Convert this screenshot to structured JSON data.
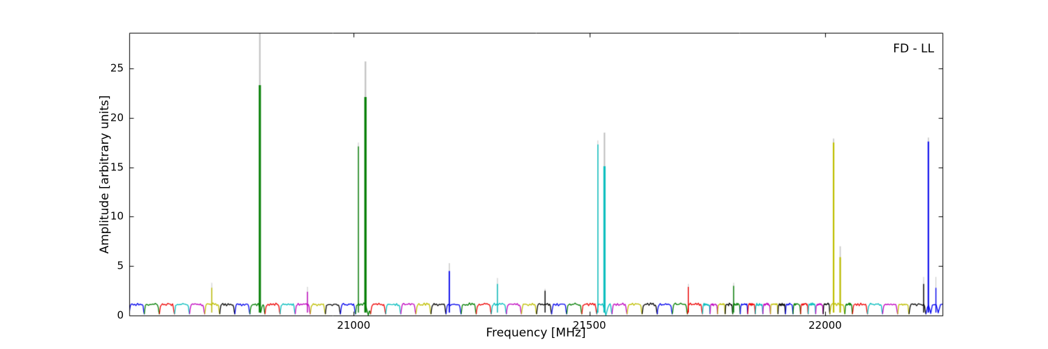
{
  "chart_data": {
    "type": "line",
    "title": "FD - LL",
    "xlabel": "Frequency [MHz]",
    "ylabel": "Amplitude [arbitrary units]",
    "xlim": [
      20524,
      22249
    ],
    "ylim": [
      0,
      28.6
    ],
    "grid": false,
    "legend": "none",
    "x_ticks": [
      {
        "v": 21000,
        "label": "21000"
      },
      {
        "v": 21500,
        "label": "21500"
      },
      {
        "v": 22000,
        "label": "22000"
      }
    ],
    "y_ticks": [
      {
        "v": 0,
        "label": "0"
      },
      {
        "v": 5,
        "label": "5"
      },
      {
        "v": 10,
        "label": "10"
      },
      {
        "v": 15,
        "label": "15"
      },
      {
        "v": 20,
        "label": "20"
      },
      {
        "v": 25,
        "label": "25"
      }
    ],
    "colors": {
      "b": "#0000ee",
      "g": "#007d00",
      "r": "#ee0000",
      "c": "#00bcbc",
      "m": "#bf00bf",
      "y": "#bfbf00",
      "k": "#000000",
      "gray": "#c6c6c6",
      "frame": "#000000",
      "background": "#ffffff"
    },
    "baseline_profile": [
      [
        0.0,
        0.15
      ],
      [
        0.03,
        0.55
      ],
      [
        0.07,
        0.95
      ],
      [
        0.12,
        1.08
      ],
      [
        0.2,
        1.18
      ],
      [
        0.28,
        1.08
      ],
      [
        0.36,
        1.16
      ],
      [
        0.45,
        1.06
      ],
      [
        0.55,
        1.2
      ],
      [
        0.64,
        1.1
      ],
      [
        0.72,
        1.18
      ],
      [
        0.8,
        1.08
      ],
      [
        0.87,
        1.12
      ],
      [
        0.92,
        0.9
      ],
      [
        0.96,
        0.4
      ],
      [
        1.0,
        0.12
      ]
    ],
    "segments": [
      [
        20524,
        20556,
        "b"
      ],
      [
        20556,
        20588,
        "g"
      ],
      [
        20588,
        20620,
        "r"
      ],
      [
        20620,
        20652,
        "c"
      ],
      [
        20652,
        20684,
        "m"
      ],
      [
        20684,
        20716,
        "y"
      ],
      [
        20716,
        20748,
        "k"
      ],
      [
        20748,
        20780,
        "b"
      ],
      [
        20780,
        20812,
        "g"
      ],
      [
        20812,
        20844,
        "r"
      ],
      [
        20844,
        20876,
        "c"
      ],
      [
        20876,
        20908,
        "m"
      ],
      [
        20908,
        20940,
        "y"
      ],
      [
        20940,
        20972,
        "k"
      ],
      [
        20972,
        21004,
        "b"
      ],
      [
        21004,
        21036,
        "g"
      ],
      [
        21036,
        21068,
        "r"
      ],
      [
        21068,
        21100,
        "c"
      ],
      [
        21100,
        21132,
        "m"
      ],
      [
        21132,
        21164,
        "y"
      ],
      [
        21164,
        21196,
        "k"
      ],
      [
        21196,
        21228,
        "b"
      ],
      [
        21228,
        21260,
        "g"
      ],
      [
        21260,
        21292,
        "r"
      ],
      [
        21292,
        21324,
        "c"
      ],
      [
        21324,
        21356,
        "m"
      ],
      [
        21356,
        21388,
        "y"
      ],
      [
        21388,
        21420,
        "k"
      ],
      [
        21420,
        21452,
        "b"
      ],
      [
        21452,
        21484,
        "g"
      ],
      [
        21484,
        21516,
        "r"
      ],
      [
        21516,
        21548,
        "c"
      ],
      [
        21548,
        21580,
        "m"
      ],
      [
        21580,
        21612,
        "y"
      ],
      [
        21612,
        21644,
        "k"
      ],
      [
        21644,
        21676,
        "b"
      ],
      [
        21676,
        21708,
        "g"
      ],
      [
        21708,
        21740,
        "r"
      ],
      [
        21740,
        21756,
        "c"
      ],
      [
        21756,
        21772,
        "m"
      ],
      [
        21772,
        21788,
        "y"
      ],
      [
        21788,
        21804,
        "k"
      ],
      [
        21804,
        21820,
        "g"
      ],
      [
        21820,
        21836,
        "b"
      ],
      [
        21836,
        21852,
        "r"
      ],
      [
        21852,
        21868,
        "c"
      ],
      [
        21868,
        21884,
        "m"
      ],
      [
        21884,
        21900,
        "y"
      ],
      [
        21900,
        21916,
        "k"
      ],
      [
        21916,
        21932,
        "b"
      ],
      [
        21932,
        21948,
        "g"
      ],
      [
        21948,
        21964,
        "r"
      ],
      [
        21964,
        21980,
        "c"
      ],
      [
        21980,
        21996,
        "m"
      ],
      [
        21996,
        22010,
        "k"
      ],
      [
        22010,
        22042,
        "y"
      ],
      [
        22042,
        22058,
        "g"
      ],
      [
        22058,
        22090,
        "r"
      ],
      [
        22090,
        22122,
        "c"
      ],
      [
        22122,
        22154,
        "m"
      ],
      [
        22154,
        22178,
        "y"
      ],
      [
        22178,
        22214,
        "k"
      ],
      [
        22214,
        22262,
        "b"
      ]
    ],
    "spikes": [
      {
        "f": 20699,
        "color": "y",
        "amp": 2.8,
        "gray_amp": 3.3
      },
      {
        "f": 20801,
        "color": "g",
        "amp": 23.3,
        "gray_amp": 29.5,
        "w": 3.0
      },
      {
        "f": 20902,
        "color": "m",
        "amp": 2.4,
        "gray_amp": 2.9
      },
      {
        "f": 21010,
        "color": "g",
        "amp": 17.1,
        "gray_amp": 17.5
      },
      {
        "f": 21025,
        "color": "g",
        "amp": 22.1,
        "gray_amp": 25.7,
        "w": 3.2
      },
      {
        "f": 21203,
        "color": "b",
        "amp": 4.5,
        "gray_amp": 5.3,
        "w": 1.8
      },
      {
        "f": 21305,
        "color": "c",
        "amp": 3.2,
        "gray_amp": 3.8
      },
      {
        "f": 21406,
        "color": "k",
        "amp": 2.5,
        "gray_amp": 2.7
      },
      {
        "f": 21518,
        "color": "c",
        "amp": 17.3,
        "gray_amp": 17.7
      },
      {
        "f": 21532,
        "color": "c",
        "amp": 15.1,
        "gray_amp": 18.5,
        "w": 3.0
      },
      {
        "f": 21710,
        "color": "r",
        "amp": 2.9,
        "gray_amp": 3.2
      },
      {
        "f": 21806,
        "color": "g",
        "amp": 3.0,
        "gray_amp": 3.3
      },
      {
        "f": 22018,
        "color": "y",
        "amp": 17.5,
        "gray_amp": 17.9,
        "w": 2.2
      },
      {
        "f": 22032,
        "color": "y",
        "amp": 5.9,
        "gray_amp": 7.0,
        "w": 2.2
      },
      {
        "f": 22209,
        "color": "k",
        "amp": 3.2,
        "gray_amp": 3.9
      },
      {
        "f": 22219,
        "color": "b",
        "amp": 17.6,
        "gray_amp": 18.0,
        "w": 2.0
      },
      {
        "f": 22235,
        "color": "b",
        "amp": 2.8,
        "gray_amp": 3.9
      }
    ],
    "dips": [
      {
        "f": 20803,
        "hw": 4,
        "to": 0.3
      },
      {
        "f": 21031,
        "hw": 5,
        "to": 0.03
      },
      {
        "f": 21535,
        "hw": 5,
        "to": 0.03
      },
      {
        "f": 22224,
        "hw": 3,
        "to": 0.2
      },
      {
        "f": 22240,
        "hw": 3,
        "to": 0.25
      }
    ]
  }
}
